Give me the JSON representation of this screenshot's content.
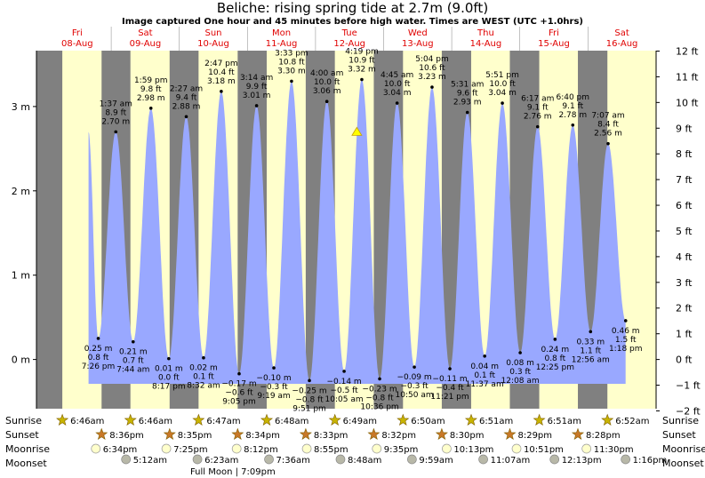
{
  "header": {
    "title": "Beliche: rising  spring tide at 2.7m (9.0ft)",
    "subtitle": "Image captured One hour and 45 minutes before high water. Times are WEST (UTC +1.0hrs)"
  },
  "colors": {
    "night": "#808080",
    "day": "#ffffcc",
    "tide": "#99a8ff",
    "sun_star": "#c8b400",
    "sunset_star": "#c87828",
    "day_label": "#e00000"
  },
  "rows": {
    "sunrise": "Sunrise",
    "sunset": "Sunset",
    "moonrise": "Moonrise",
    "moonset": "Moonset"
  },
  "chart_data": {
    "type": "area",
    "title": "Beliche: rising  spring tide at 2.7m (9.0ft)",
    "ylabel_left": "m",
    "ylabel_right": "ft",
    "ylim_m": [
      -0.55,
      3.65
    ],
    "left_ticks": [
      "0 m",
      "1 m",
      "2 m",
      "3 m"
    ],
    "left_tick_values": [
      0,
      1,
      2,
      3
    ],
    "right_ticks": [
      "−2 ft",
      "−1 ft",
      "0 ft",
      "1 ft",
      "2 ft",
      "3 ft",
      "4 ft",
      "5 ft",
      "6 ft",
      "7 ft",
      "8 ft",
      "9 ft",
      "10 ft",
      "11 ft",
      "12 ft"
    ],
    "right_tick_values": [
      -2,
      -1,
      0,
      1,
      2,
      3,
      4,
      5,
      6,
      7,
      8,
      9,
      10,
      11,
      12
    ],
    "days": [
      {
        "dow": "Fri",
        "date": "08-Aug"
      },
      {
        "dow": "Sat",
        "date": "09-Aug"
      },
      {
        "dow": "Sun",
        "date": "10-Aug"
      },
      {
        "dow": "Mon",
        "date": "11-Aug"
      },
      {
        "dow": "Tue",
        "date": "12-Aug"
      },
      {
        "dow": "Wed",
        "date": "13-Aug"
      },
      {
        "dow": "Thu",
        "date": "14-Aug"
      },
      {
        "dow": "Fri",
        "date": "15-Aug"
      },
      {
        "dow": "Sat",
        "date": "16-Aug"
      }
    ],
    "current": {
      "time": "08-Aug 16:00",
      "height_m": 2.7
    },
    "marker": {
      "time": "12-Aug 14:34",
      "height_m": 2.7
    },
    "extremes": [
      {
        "time": "08-Aug 19:26",
        "type": "low",
        "m": 0.25,
        "ft": 0.8,
        "label_m": "0.25 m",
        "label_ft": "0.8 ft",
        "label_t": "7:26 pm"
      },
      {
        "time": "09-Aug 01:37",
        "type": "high",
        "m": 2.7,
        "ft": 8.9,
        "label_m": "2.70 m",
        "label_ft": "8.9 ft",
        "label_t": "1:37 am"
      },
      {
        "time": "09-Aug 07:44",
        "type": "low",
        "m": 0.21,
        "ft": 0.7,
        "label_m": "0.21 m",
        "label_ft": "0.7 ft",
        "label_t": "7:44 am"
      },
      {
        "time": "09-Aug 13:59",
        "type": "high",
        "m": 2.98,
        "ft": 9.8,
        "label_m": "2.98 m",
        "label_ft": "9.8 ft",
        "label_t": "1:59 pm"
      },
      {
        "time": "09-Aug 20:17",
        "type": "low",
        "m": 0.01,
        "ft": 0.0,
        "label_m": "0.01 m",
        "label_ft": "0.0 ft",
        "label_t": "8:17 pm"
      },
      {
        "time": "10-Aug 02:27",
        "type": "high",
        "m": 2.88,
        "ft": 9.4,
        "label_m": "2.88 m",
        "label_ft": "9.4 ft",
        "label_t": "2:27 am"
      },
      {
        "time": "10-Aug 08:32",
        "type": "low",
        "m": 0.02,
        "ft": 0.1,
        "label_m": "0.02 m",
        "label_ft": "0.1 ft",
        "label_t": "8:32 am"
      },
      {
        "time": "10-Aug 14:47",
        "type": "high",
        "m": 3.18,
        "ft": 10.4,
        "label_m": "3.18 m",
        "label_ft": "10.4 ft",
        "label_t": "2:47 pm"
      },
      {
        "time": "10-Aug 21:05",
        "type": "low",
        "m": -0.17,
        "ft": -0.6,
        "label_m": "−0.17 m",
        "label_ft": "−0.6 ft",
        "label_t": "9:05 pm"
      },
      {
        "time": "11-Aug 03:14",
        "type": "high",
        "m": 3.01,
        "ft": 9.9,
        "label_m": "3.01 m",
        "label_ft": "9.9 ft",
        "label_t": "3:14 am"
      },
      {
        "time": "11-Aug 09:19",
        "type": "low",
        "m": -0.1,
        "ft": -0.3,
        "label_m": "−0.10 m",
        "label_ft": "−0.3 ft",
        "label_t": "9:19 am"
      },
      {
        "time": "11-Aug 15:33",
        "type": "high",
        "m": 3.3,
        "ft": 10.8,
        "label_m": "3.30 m",
        "label_ft": "10.8 ft",
        "label_t": "3:33 pm"
      },
      {
        "time": "11-Aug 21:51",
        "type": "low",
        "m": -0.25,
        "ft": -0.8,
        "label_m": "−0.25 m",
        "label_ft": "−0.8 ft",
        "label_t": "9:51 pm"
      },
      {
        "time": "12-Aug 04:00",
        "type": "high",
        "m": 3.06,
        "ft": 10.0,
        "label_m": "3.06 m",
        "label_ft": "10.0 ft",
        "label_t": "4:00 am"
      },
      {
        "time": "12-Aug 10:05",
        "type": "low",
        "m": -0.14,
        "ft": -0.5,
        "label_m": "−0.14 m",
        "label_ft": "−0.5 ft",
        "label_t": "10:05 am"
      },
      {
        "time": "12-Aug 16:19",
        "type": "high",
        "m": 3.32,
        "ft": 10.9,
        "label_m": "3.32 m",
        "label_ft": "10.9 ft",
        "label_t": "4:19 pm"
      },
      {
        "time": "12-Aug 22:36",
        "type": "low",
        "m": -0.23,
        "ft": -0.8,
        "label_m": "−0.23 m",
        "label_ft": "−0.8 ft",
        "label_t": "10:36 pm"
      },
      {
        "time": "13-Aug 04:45",
        "type": "high",
        "m": 3.04,
        "ft": 10.0,
        "label_m": "3.04 m",
        "label_ft": "10.0 ft",
        "label_t": "4:45 am"
      },
      {
        "time": "13-Aug 10:50",
        "type": "low",
        "m": -0.09,
        "ft": -0.3,
        "label_m": "−0.09 m",
        "label_ft": "−0.3 ft",
        "label_t": "10:50 am"
      },
      {
        "time": "13-Aug 17:04",
        "type": "high",
        "m": 3.23,
        "ft": 10.6,
        "label_m": "3.23 m",
        "label_ft": "10.6 ft",
        "label_t": "5:04 pm"
      },
      {
        "time": "13-Aug 23:21",
        "type": "low",
        "m": -0.11,
        "ft": -0.4,
        "label_m": "−0.11 m",
        "label_ft": "−0.4 ft",
        "label_t": "11:21 pm"
      },
      {
        "time": "14-Aug 05:31",
        "type": "high",
        "m": 2.93,
        "ft": 9.6,
        "label_m": "2.93 m",
        "label_ft": "9.6 ft",
        "label_t": "5:31 am"
      },
      {
        "time": "14-Aug 11:37",
        "type": "low",
        "m": 0.04,
        "ft": 0.1,
        "label_m": "0.04 m",
        "label_ft": "0.1 ft",
        "label_t": "11:37 am"
      },
      {
        "time": "14-Aug 17:51",
        "type": "high",
        "m": 3.04,
        "ft": 10.0,
        "label_m": "3.04 m",
        "label_ft": "10.0 ft",
        "label_t": "5:51 pm"
      },
      {
        "time": "15-Aug 00:08",
        "type": "low",
        "m": 0.08,
        "ft": 0.3,
        "label_m": "0.08 m",
        "label_ft": "0.3 ft",
        "label_t": "12:08 am"
      },
      {
        "time": "15-Aug 06:17",
        "type": "high",
        "m": 2.76,
        "ft": 9.1,
        "label_m": "2.76 m",
        "label_ft": "9.1 ft",
        "label_t": "6:17 am"
      },
      {
        "time": "15-Aug 12:25",
        "type": "low",
        "m": 0.24,
        "ft": 0.8,
        "label_m": "0.24 m",
        "label_ft": "0.8 ft",
        "label_t": "12:25 pm"
      },
      {
        "time": "15-Aug 18:40",
        "type": "high",
        "m": 2.78,
        "ft": 9.1,
        "label_m": "2.78 m",
        "label_ft": "9.1 ft",
        "label_t": "6:40 pm"
      },
      {
        "time": "16-Aug 00:56",
        "type": "low",
        "m": 0.33,
        "ft": 1.1,
        "label_m": "0.33 m",
        "label_ft": "1.1 ft",
        "label_t": "12:56 am"
      },
      {
        "time": "16-Aug 07:07",
        "type": "high",
        "m": 2.56,
        "ft": 8.4,
        "label_m": "2.56 m",
        "label_ft": "8.4 ft",
        "label_t": "7:07 am"
      },
      {
        "time": "16-Aug 13:18",
        "type": "low",
        "m": 0.46,
        "ft": 1.5,
        "label_m": "0.46 m",
        "label_ft": "1.5 ft",
        "label_t": "1:18 pm"
      }
    ],
    "daylight": [
      {
        "rise": "08-Aug 06:46",
        "set": "08-Aug 20:36"
      },
      {
        "rise": "09-Aug 06:46",
        "set": "09-Aug 20:35"
      },
      {
        "rise": "10-Aug 06:47",
        "set": "10-Aug 20:34"
      },
      {
        "rise": "11-Aug 06:48",
        "set": "11-Aug 20:33"
      },
      {
        "rise": "12-Aug 06:49",
        "set": "12-Aug 20:32"
      },
      {
        "rise": "13-Aug 06:50",
        "set": "13-Aug 20:30"
      },
      {
        "rise": "14-Aug 06:51",
        "set": "14-Aug 20:29"
      },
      {
        "rise": "15-Aug 06:51",
        "set": "15-Aug 20:28"
      },
      {
        "rise": "16-Aug 06:52",
        "set": null
      }
    ],
    "sunrise": [
      {
        "time": "08-Aug 06:46",
        "label": "6:46am"
      },
      {
        "time": "09-Aug 06:46",
        "label": "6:46am"
      },
      {
        "time": "10-Aug 06:47",
        "label": "6:47am"
      },
      {
        "time": "11-Aug 06:48",
        "label": "6:48am"
      },
      {
        "time": "12-Aug 06:49",
        "label": "6:49am"
      },
      {
        "time": "13-Aug 06:50",
        "label": "6:50am"
      },
      {
        "time": "14-Aug 06:51",
        "label": "6:51am"
      },
      {
        "time": "15-Aug 06:51",
        "label": "6:51am"
      },
      {
        "time": "16-Aug 06:52",
        "label": "6:52am"
      }
    ],
    "sunset": [
      {
        "time": "08-Aug 20:36",
        "label": "8:36pm"
      },
      {
        "time": "09-Aug 20:35",
        "label": "8:35pm"
      },
      {
        "time": "10-Aug 20:34",
        "label": "8:34pm"
      },
      {
        "time": "11-Aug 20:33",
        "label": "8:33pm"
      },
      {
        "time": "12-Aug 20:32",
        "label": "8:32pm"
      },
      {
        "time": "13-Aug 20:30",
        "label": "8:30pm"
      },
      {
        "time": "14-Aug 20:29",
        "label": "8:29pm"
      },
      {
        "time": "15-Aug 20:28",
        "label": "8:28pm"
      }
    ],
    "moonrise": [
      {
        "time": "08-Aug 18:34",
        "label": "6:34pm"
      },
      {
        "time": "09-Aug 19:25",
        "label": "7:25pm"
      },
      {
        "time": "10-Aug 20:12",
        "label": "8:12pm"
      },
      {
        "time": "11-Aug 20:55",
        "label": "8:55pm"
      },
      {
        "time": "12-Aug 21:35",
        "label": "9:35pm"
      },
      {
        "time": "13-Aug 22:13",
        "label": "10:13pm"
      },
      {
        "time": "14-Aug 22:51",
        "label": "10:51pm"
      },
      {
        "time": "15-Aug 23:30",
        "label": "11:30pm"
      }
    ],
    "moonset": [
      {
        "time": "09-Aug 05:12",
        "label": "5:12am"
      },
      {
        "time": "10-Aug 06:23",
        "label": "6:23am"
      },
      {
        "time": "11-Aug 07:36",
        "label": "7:36am"
      },
      {
        "time": "12-Aug 08:48",
        "label": "8:48am"
      },
      {
        "time": "13-Aug 09:59",
        "label": "9:59am"
      },
      {
        "time": "14-Aug 11:07",
        "label": "11:07am"
      },
      {
        "time": "15-Aug 12:13",
        "label": "12:13pm"
      },
      {
        "time": "16-Aug 13:16",
        "label": "1:16pm"
      }
    ],
    "full_moon": {
      "time": "10-Aug 19:09",
      "label": "Full Moon | 7:09pm"
    }
  }
}
